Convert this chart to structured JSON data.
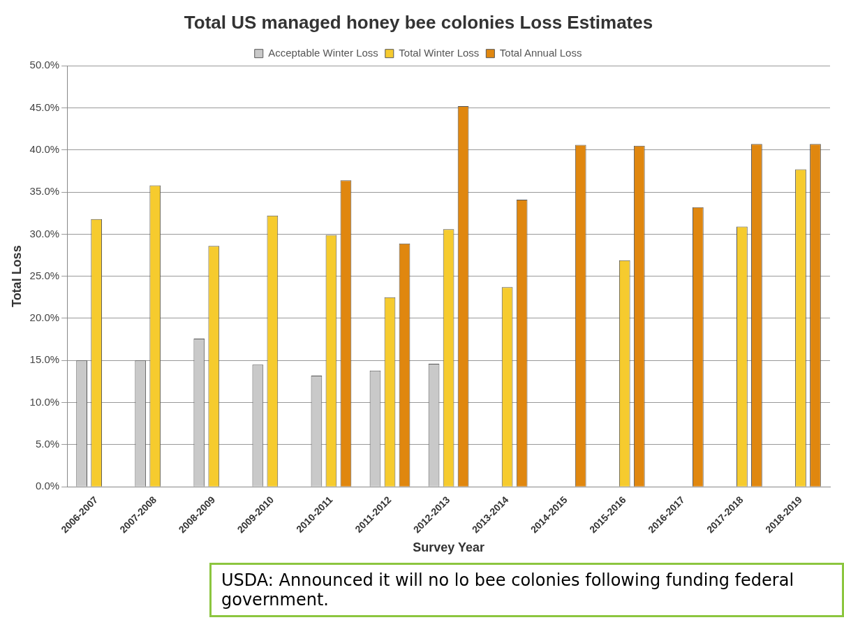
{
  "chart_data": {
    "type": "bar",
    "title": "Total US managed honey bee colonies Loss Estimates",
    "xlabel": "Survey Year",
    "ylabel": "Total Loss",
    "categories": [
      "2006-2007",
      "2007-2008",
      "2008-2009",
      "2009-2010",
      "2010-2011",
      "2011-2012",
      "2012-2013",
      "2013-2014",
      "2014-2015",
      "2015-2016",
      "2016-2017",
      "2017-2018",
      "2018-2019"
    ],
    "series": [
      {
        "name": "Acceptable Winter Loss",
        "color": "#c9c9c9",
        "values": [
          15.0,
          15.0,
          17.6,
          14.5,
          13.2,
          13.8,
          14.6,
          null,
          null,
          null,
          null,
          null,
          null
        ]
      },
      {
        "name": "Total Winter Loss",
        "color": "#f6cb2e",
        "values": [
          31.8,
          35.8,
          28.6,
          32.2,
          29.9,
          22.5,
          30.6,
          23.7,
          null,
          26.9,
          null,
          30.9,
          37.7
        ]
      },
      {
        "name": "Total Annual Loss",
        "color": "#e0870f",
        "values": [
          null,
          null,
          null,
          null,
          36.4,
          28.9,
          45.2,
          34.1,
          40.6,
          40.5,
          33.2,
          40.7,
          40.7
        ]
      }
    ],
    "ylim": [
      0,
      50
    ],
    "yticks": [
      {
        "value": 0,
        "label": "0.0%"
      },
      {
        "value": 5,
        "label": "5.0%"
      },
      {
        "value": 10,
        "label": "10.0%"
      },
      {
        "value": 15,
        "label": "15.0%"
      },
      {
        "value": 20,
        "label": "20.0%"
      },
      {
        "value": 25,
        "label": "25.0%"
      },
      {
        "value": 30,
        "label": "30.0%"
      },
      {
        "value": 35,
        "label": "35.0%"
      },
      {
        "value": 40,
        "label": "40.0%"
      },
      {
        "value": 45,
        "label": "45.0%"
      },
      {
        "value": 50,
        "label": "50.0%"
      }
    ],
    "grid": "y",
    "legend": "top",
    "annotations": [
      "USDA: Announced it will no lo bee colonies following funding federal government."
    ]
  }
}
